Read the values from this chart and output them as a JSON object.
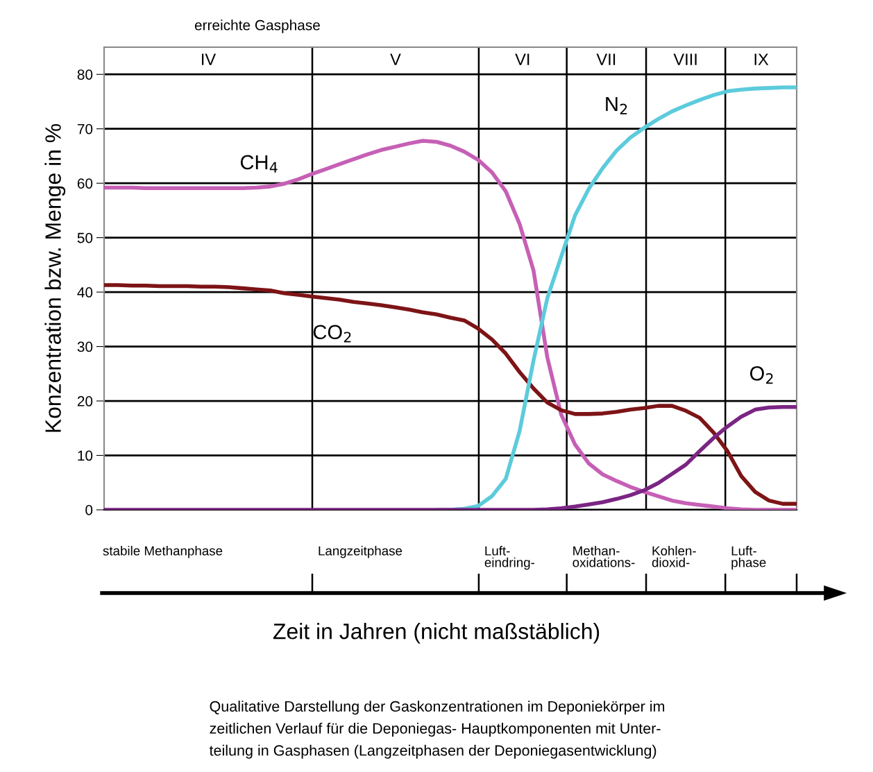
{
  "chart_data": {
    "type": "line",
    "ylabel": "Konzentration bzw. Menge in %",
    "categories": [
      null,
      null,
      null,
      null,
      null,
      null,
      null,
      null,
      null,
      null,
      null,
      null,
      null,
      null,
      null,
      null,
      null,
      null,
      null,
      null,
      null,
      null,
      null,
      null,
      null,
      null,
      null,
      null,
      null,
      null,
      null,
      null,
      null,
      null,
      null,
      null,
      null,
      null,
      null,
      null,
      null,
      null,
      null,
      null,
      null,
      null,
      null,
      null,
      null,
      null,
      null
    ],
    "ylim": [
      0,
      85
    ],
    "yticks": [
      0,
      10,
      20,
      30,
      40,
      50,
      60,
      70,
      80
    ],
    "tick_labels": "y",
    "grid": true,
    "legend": false,
    "series": [
      {
        "name": "CH$_{4}$",
        "color": "#c660b5",
        "values": [
          59.2,
          59.2,
          59.2,
          59.1,
          59.1,
          59.1,
          59.1,
          59.1,
          59.1,
          59.1,
          59.1,
          59.2,
          59.4,
          59.9,
          60.7,
          61.7,
          62.6,
          63.5,
          64.4,
          65.3,
          66.1,
          66.7,
          67.3,
          67.8,
          67.6,
          66.9,
          65.8,
          64.3,
          62,
          58.5,
          52.5,
          44,
          28,
          17.5,
          12,
          8.5,
          6.5,
          5.3,
          4.2,
          3.3,
          2.5,
          1.7,
          1.2,
          0.9,
          0.6,
          0.3,
          0.1,
          0,
          0,
          0,
          0
        ]
      },
      {
        "name": "CO$_{2}$",
        "color": "#7d1416",
        "values": [
          41.3,
          41.3,
          41.2,
          41.2,
          41.1,
          41.1,
          41.1,
          41,
          41,
          40.9,
          40.7,
          40.5,
          40.3,
          39.8,
          39.5,
          39.2,
          38.9,
          38.6,
          38.2,
          37.9,
          37.6,
          37.2,
          36.8,
          36.3,
          35.9,
          35.3,
          34.8,
          33.3,
          31.3,
          28.7,
          25.3,
          22.3,
          19.7,
          18.3,
          17.6,
          17.6,
          17.7,
          18,
          18.4,
          18.7,
          19.1,
          19.1,
          18.2,
          16.9,
          14.2,
          10.8,
          6.2,
          3.3,
          1.7,
          1.1,
          1.1
        ]
      },
      {
        "name": "N$_{2}$",
        "color": "#5ccbdc",
        "values": [
          null,
          null,
          null,
          null,
          null,
          null,
          null,
          null,
          null,
          null,
          null,
          null,
          null,
          null,
          null,
          null,
          null,
          null,
          null,
          null,
          null,
          null,
          null,
          null,
          0,
          0,
          0.2,
          0.7,
          2.5,
          5.7,
          14.5,
          27.4,
          38.9,
          46.5,
          54.1,
          59,
          62.8,
          66,
          68.4,
          70.2,
          71.8,
          73.2,
          74.3,
          75.3,
          76.2,
          76.9,
          77.2,
          77.4,
          77.5,
          77.6,
          77.6
        ]
      },
      {
        "name": "O$_{2}$",
        "color": "#7a2583",
        "values": [
          0,
          0,
          0,
          0,
          0,
          0,
          0,
          0,
          0,
          0,
          0,
          0,
          0,
          0,
          0,
          0,
          0,
          0,
          0,
          0,
          0,
          0,
          0,
          0,
          0,
          0,
          0,
          0,
          0,
          0,
          0,
          0,
          0.1,
          0.3,
          0.6,
          1,
          1.4,
          2,
          2.7,
          3.6,
          4.9,
          6.6,
          8.3,
          10.8,
          13.2,
          15.3,
          17.1,
          18.4,
          18.8,
          18.9,
          18.9
        ]
      }
    ],
    "annotations": [
      "erreichte Gasphase",
      "IV",
      "V",
      "VI",
      "VII",
      "VIII",
      "IX",
      "stabile Methanphase",
      "Langzeitphase",
      "Luft-\neindring-",
      "Methan-\noxidations-",
      "Kohlen-\ndioxid-",
      "Luft-\nphase",
      "Zeit in Jahren (nicht maßstäblich)",
      "Qualitative Darstellung der Gaskonzentrationen im Deponiekörper im\nzeitlichen Verlauf für die Deponiegas- Hauptkomponenten mit Unter-\nteilung in Gasphasen (Langzeitphasen der Deponiegasentwicklung)"
    ]
  }
}
